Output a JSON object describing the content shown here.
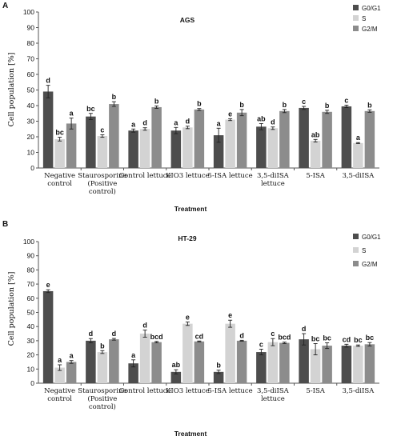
{
  "chart_data": [
    {
      "type": "bar",
      "panel_letter": "A",
      "title": "AGS",
      "xlabel": "Treatment",
      "ylabel": "Cell population [%]",
      "ylim": [
        0,
        100
      ],
      "yticks": [
        0,
        10,
        20,
        30,
        40,
        50,
        60,
        70,
        80,
        90,
        100
      ],
      "grid": false,
      "legend_position": "top-right",
      "categories": [
        [
          "Negative",
          "control"
        ],
        [
          "Staurosporine",
          "(Positive",
          "control)"
        ],
        [
          "Control lettuce"
        ],
        [
          "KIO3 lettuce"
        ],
        [
          "5-ISA lettuce"
        ],
        [
          "3,5-diISA",
          "lettuce"
        ],
        [
          "5-ISA"
        ],
        [
          "3,5-diISA"
        ]
      ],
      "series": [
        {
          "name": "G0/G1",
          "color": "#4d4d4d",
          "values": [
            49,
            33,
            24,
            24,
            21,
            26.5,
            38.5,
            39.5
          ],
          "errors": [
            4,
            2,
            1,
            2,
            4.5,
            2,
            1,
            0.8
          ],
          "letters": [
            "d",
            "bc",
            "a",
            "a",
            "a",
            "ab",
            "c",
            "c"
          ]
        },
        {
          "name": "S",
          "color": "#d3d3d3",
          "values": [
            18.5,
            20.5,
            25,
            26,
            31,
            25.5,
            17.5,
            16
          ],
          "errors": [
            1.2,
            0.8,
            0.8,
            0.8,
            0.6,
            0.8,
            0.8,
            0.3
          ],
          "letters": [
            "bc",
            "c",
            "d",
            "d",
            "e",
            "d",
            "ab",
            "a"
          ]
        },
        {
          "name": "G2/M",
          "color": "#8c8c8c",
          "values": [
            28.5,
            41,
            39,
            37.5,
            35.5,
            36.5,
            36,
            36.5
          ],
          "errors": [
            3.5,
            1.5,
            0.8,
            0.6,
            2,
            1,
            1,
            0.8
          ],
          "letters": [
            "a",
            "b",
            "b",
            "b",
            "b",
            "b",
            "b",
            "b"
          ]
        }
      ]
    },
    {
      "type": "bar",
      "panel_letter": "B",
      "title": "HT-29",
      "xlabel": "Treatment",
      "ylabel": "Cell population [%]",
      "ylim": [
        0,
        100
      ],
      "yticks": [
        0,
        10,
        20,
        30,
        40,
        50,
        60,
        70,
        80,
        90,
        100
      ],
      "grid": false,
      "legend_position": "top-right",
      "categories": [
        [
          "Negative",
          "control"
        ],
        [
          "Staurosporine",
          "(Positive",
          "control)"
        ],
        [
          "Control lettuce"
        ],
        [
          "KIO3 lettuce"
        ],
        [
          "5-ISA lettuce"
        ],
        [
          "3,5-diISA",
          "lettuce"
        ],
        [
          "5-ISA"
        ],
        [
          "3,5-diISA"
        ]
      ],
      "series": [
        {
          "name": "G0/G1",
          "color": "#4d4d4d",
          "values": [
            65,
            30,
            14,
            8,
            8,
            22,
            31,
            26.5
          ],
          "errors": [
            1,
            1.5,
            2.5,
            1.5,
            1.2,
            2,
            4,
            1
          ],
          "letters": [
            "e",
            "d",
            "a",
            "ab",
            "b",
            "c",
            "d",
            "cd"
          ]
        },
        {
          "name": "S",
          "color": "#d3d3d3",
          "values": [
            11,
            22,
            35,
            42,
            42,
            29,
            24,
            26.5
          ],
          "errors": [
            2,
            1,
            2.5,
            1.2,
            2.5,
            2.5,
            4,
            0.5
          ],
          "letters": [
            "a",
            "b",
            "d",
            "e",
            "e",
            "c",
            "bc",
            "bc"
          ]
        },
        {
          "name": "G2/M",
          "color": "#8c8c8c",
          "values": [
            15,
            31,
            29,
            29.5,
            30,
            28.5,
            26.5,
            27.5
          ],
          "errors": [
            1,
            0.6,
            0.5,
            0.3,
            0.3,
            0.5,
            2,
            1.2
          ],
          "letters": [
            "a",
            "d",
            "bcd",
            "cd",
            "d",
            "bcd",
            "bc",
            "bc"
          ]
        }
      ]
    }
  ]
}
